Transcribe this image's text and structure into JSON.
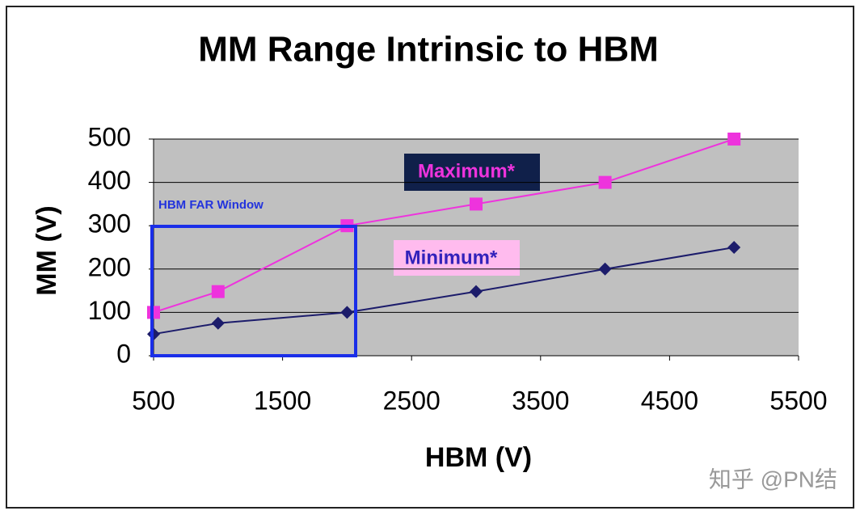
{
  "chart_data": {
    "type": "line",
    "title": "MM Range Intrinsic to HBM",
    "x_label": "HBM (V)",
    "y_label": "MM (V)",
    "x": [
      500,
      1000,
      2000,
      3000,
      4000,
      5000
    ],
    "series": [
      {
        "name": "Maximum*",
        "color": "#ee33dd",
        "marker": "square",
        "values": [
          100,
          148,
          300,
          350,
          400,
          500
        ]
      },
      {
        "name": "Minimum*",
        "color": "#1c1c6b",
        "marker": "diamond",
        "values": [
          50,
          75,
          100,
          148,
          200,
          250
        ]
      }
    ],
    "xlim": [
      500,
      5500
    ],
    "xticks": [
      500,
      1500,
      2500,
      3500,
      4500,
      5500
    ],
    "ylim": [
      0,
      500
    ],
    "yticks": [
      0,
      100,
      200,
      300,
      400,
      500
    ],
    "grid": true,
    "annotation": "HBM FAR Window",
    "watermark": "知乎 @PN结"
  }
}
